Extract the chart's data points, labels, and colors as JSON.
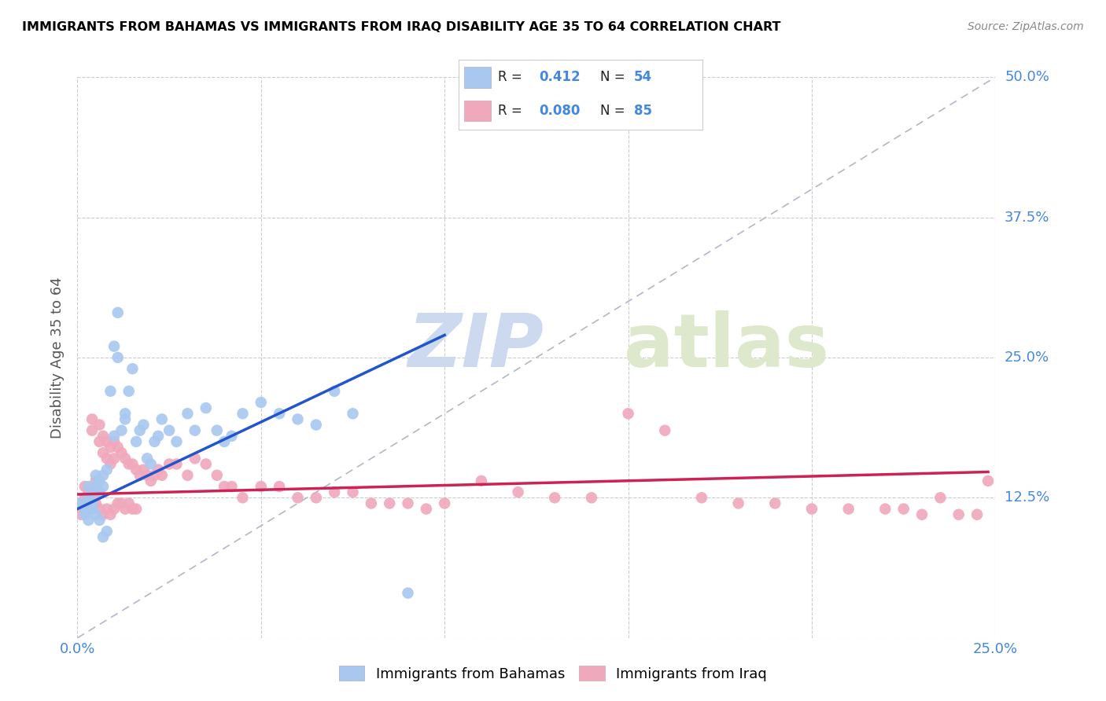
{
  "title": "IMMIGRANTS FROM BAHAMAS VS IMMIGRANTS FROM IRAQ DISABILITY AGE 35 TO 64 CORRELATION CHART",
  "source": "Source: ZipAtlas.com",
  "ylabel": "Disability Age 35 to 64",
  "xlim": [
    0.0,
    0.25
  ],
  "ylim": [
    0.0,
    0.5
  ],
  "bahamas_color": "#a8c8f0",
  "iraq_color": "#f0a8bc",
  "trendline_color_bahamas": "#2255cc",
  "trendline_color_iraq": "#cc2255",
  "diagonal_color": "#b0b8c8",
  "watermark_zip": "ZIP",
  "watermark_atlas": "atlas",
  "legend_label_bahamas": "Immigrants from Bahamas",
  "legend_label_iraq": "Immigrants from Iraq",
  "bahamas_R": "0.412",
  "bahamas_N": "54",
  "iraq_R": "0.080",
  "iraq_N": "85",
  "bahamas_x": [
    0.001,
    0.002,
    0.002,
    0.003,
    0.003,
    0.003,
    0.004,
    0.004,
    0.004,
    0.005,
    0.005,
    0.005,
    0.006,
    0.006,
    0.006,
    0.007,
    0.007,
    0.007,
    0.008,
    0.008,
    0.009,
    0.01,
    0.01,
    0.011,
    0.011,
    0.012,
    0.013,
    0.013,
    0.014,
    0.015,
    0.016,
    0.017,
    0.018,
    0.019,
    0.02,
    0.021,
    0.022,
    0.023,
    0.025,
    0.027,
    0.03,
    0.032,
    0.035,
    0.038,
    0.04,
    0.042,
    0.045,
    0.05,
    0.055,
    0.06,
    0.065,
    0.07,
    0.075,
    0.09
  ],
  "bahamas_y": [
    0.12,
    0.115,
    0.11,
    0.135,
    0.125,
    0.105,
    0.13,
    0.12,
    0.115,
    0.145,
    0.135,
    0.11,
    0.14,
    0.13,
    0.105,
    0.145,
    0.135,
    0.09,
    0.15,
    0.095,
    0.22,
    0.18,
    0.26,
    0.29,
    0.25,
    0.185,
    0.2,
    0.195,
    0.22,
    0.24,
    0.175,
    0.185,
    0.19,
    0.16,
    0.155,
    0.175,
    0.18,
    0.195,
    0.185,
    0.175,
    0.2,
    0.185,
    0.205,
    0.185,
    0.175,
    0.18,
    0.2,
    0.21,
    0.2,
    0.195,
    0.19,
    0.22,
    0.2,
    0.04
  ],
  "iraq_x": [
    0.001,
    0.001,
    0.002,
    0.002,
    0.003,
    0.003,
    0.003,
    0.004,
    0.004,
    0.004,
    0.005,
    0.005,
    0.005,
    0.006,
    0.006,
    0.006,
    0.007,
    0.007,
    0.007,
    0.008,
    0.008,
    0.008,
    0.009,
    0.009,
    0.009,
    0.01,
    0.01,
    0.01,
    0.011,
    0.011,
    0.012,
    0.012,
    0.013,
    0.013,
    0.014,
    0.014,
    0.015,
    0.015,
    0.016,
    0.016,
    0.017,
    0.018,
    0.019,
    0.02,
    0.021,
    0.022,
    0.023,
    0.025,
    0.027,
    0.03,
    0.032,
    0.035,
    0.038,
    0.04,
    0.042,
    0.045,
    0.05,
    0.055,
    0.06,
    0.065,
    0.07,
    0.075,
    0.08,
    0.085,
    0.09,
    0.095,
    0.1,
    0.11,
    0.12,
    0.13,
    0.14,
    0.15,
    0.16,
    0.17,
    0.18,
    0.19,
    0.2,
    0.21,
    0.22,
    0.225,
    0.23,
    0.235,
    0.24,
    0.245,
    0.248
  ],
  "iraq_y": [
    0.12,
    0.11,
    0.135,
    0.125,
    0.13,
    0.12,
    0.115,
    0.195,
    0.185,
    0.12,
    0.14,
    0.13,
    0.12,
    0.19,
    0.175,
    0.115,
    0.18,
    0.165,
    0.11,
    0.175,
    0.16,
    0.115,
    0.17,
    0.155,
    0.11,
    0.175,
    0.16,
    0.115,
    0.17,
    0.12,
    0.165,
    0.12,
    0.16,
    0.115,
    0.155,
    0.12,
    0.155,
    0.115,
    0.15,
    0.115,
    0.145,
    0.15,
    0.145,
    0.14,
    0.145,
    0.15,
    0.145,
    0.155,
    0.155,
    0.145,
    0.16,
    0.155,
    0.145,
    0.135,
    0.135,
    0.125,
    0.135,
    0.135,
    0.125,
    0.125,
    0.13,
    0.13,
    0.12,
    0.12,
    0.12,
    0.115,
    0.12,
    0.14,
    0.13,
    0.125,
    0.125,
    0.2,
    0.185,
    0.125,
    0.12,
    0.12,
    0.115,
    0.115,
    0.115,
    0.115,
    0.11,
    0.125,
    0.11,
    0.11,
    0.14
  ],
  "bahamas_trend_x": [
    0.0,
    0.1
  ],
  "bahamas_trend_y": [
    0.115,
    0.27
  ],
  "iraq_trend_x": [
    0.0,
    0.248
  ],
  "iraq_trend_y": [
    0.128,
    0.148
  ]
}
